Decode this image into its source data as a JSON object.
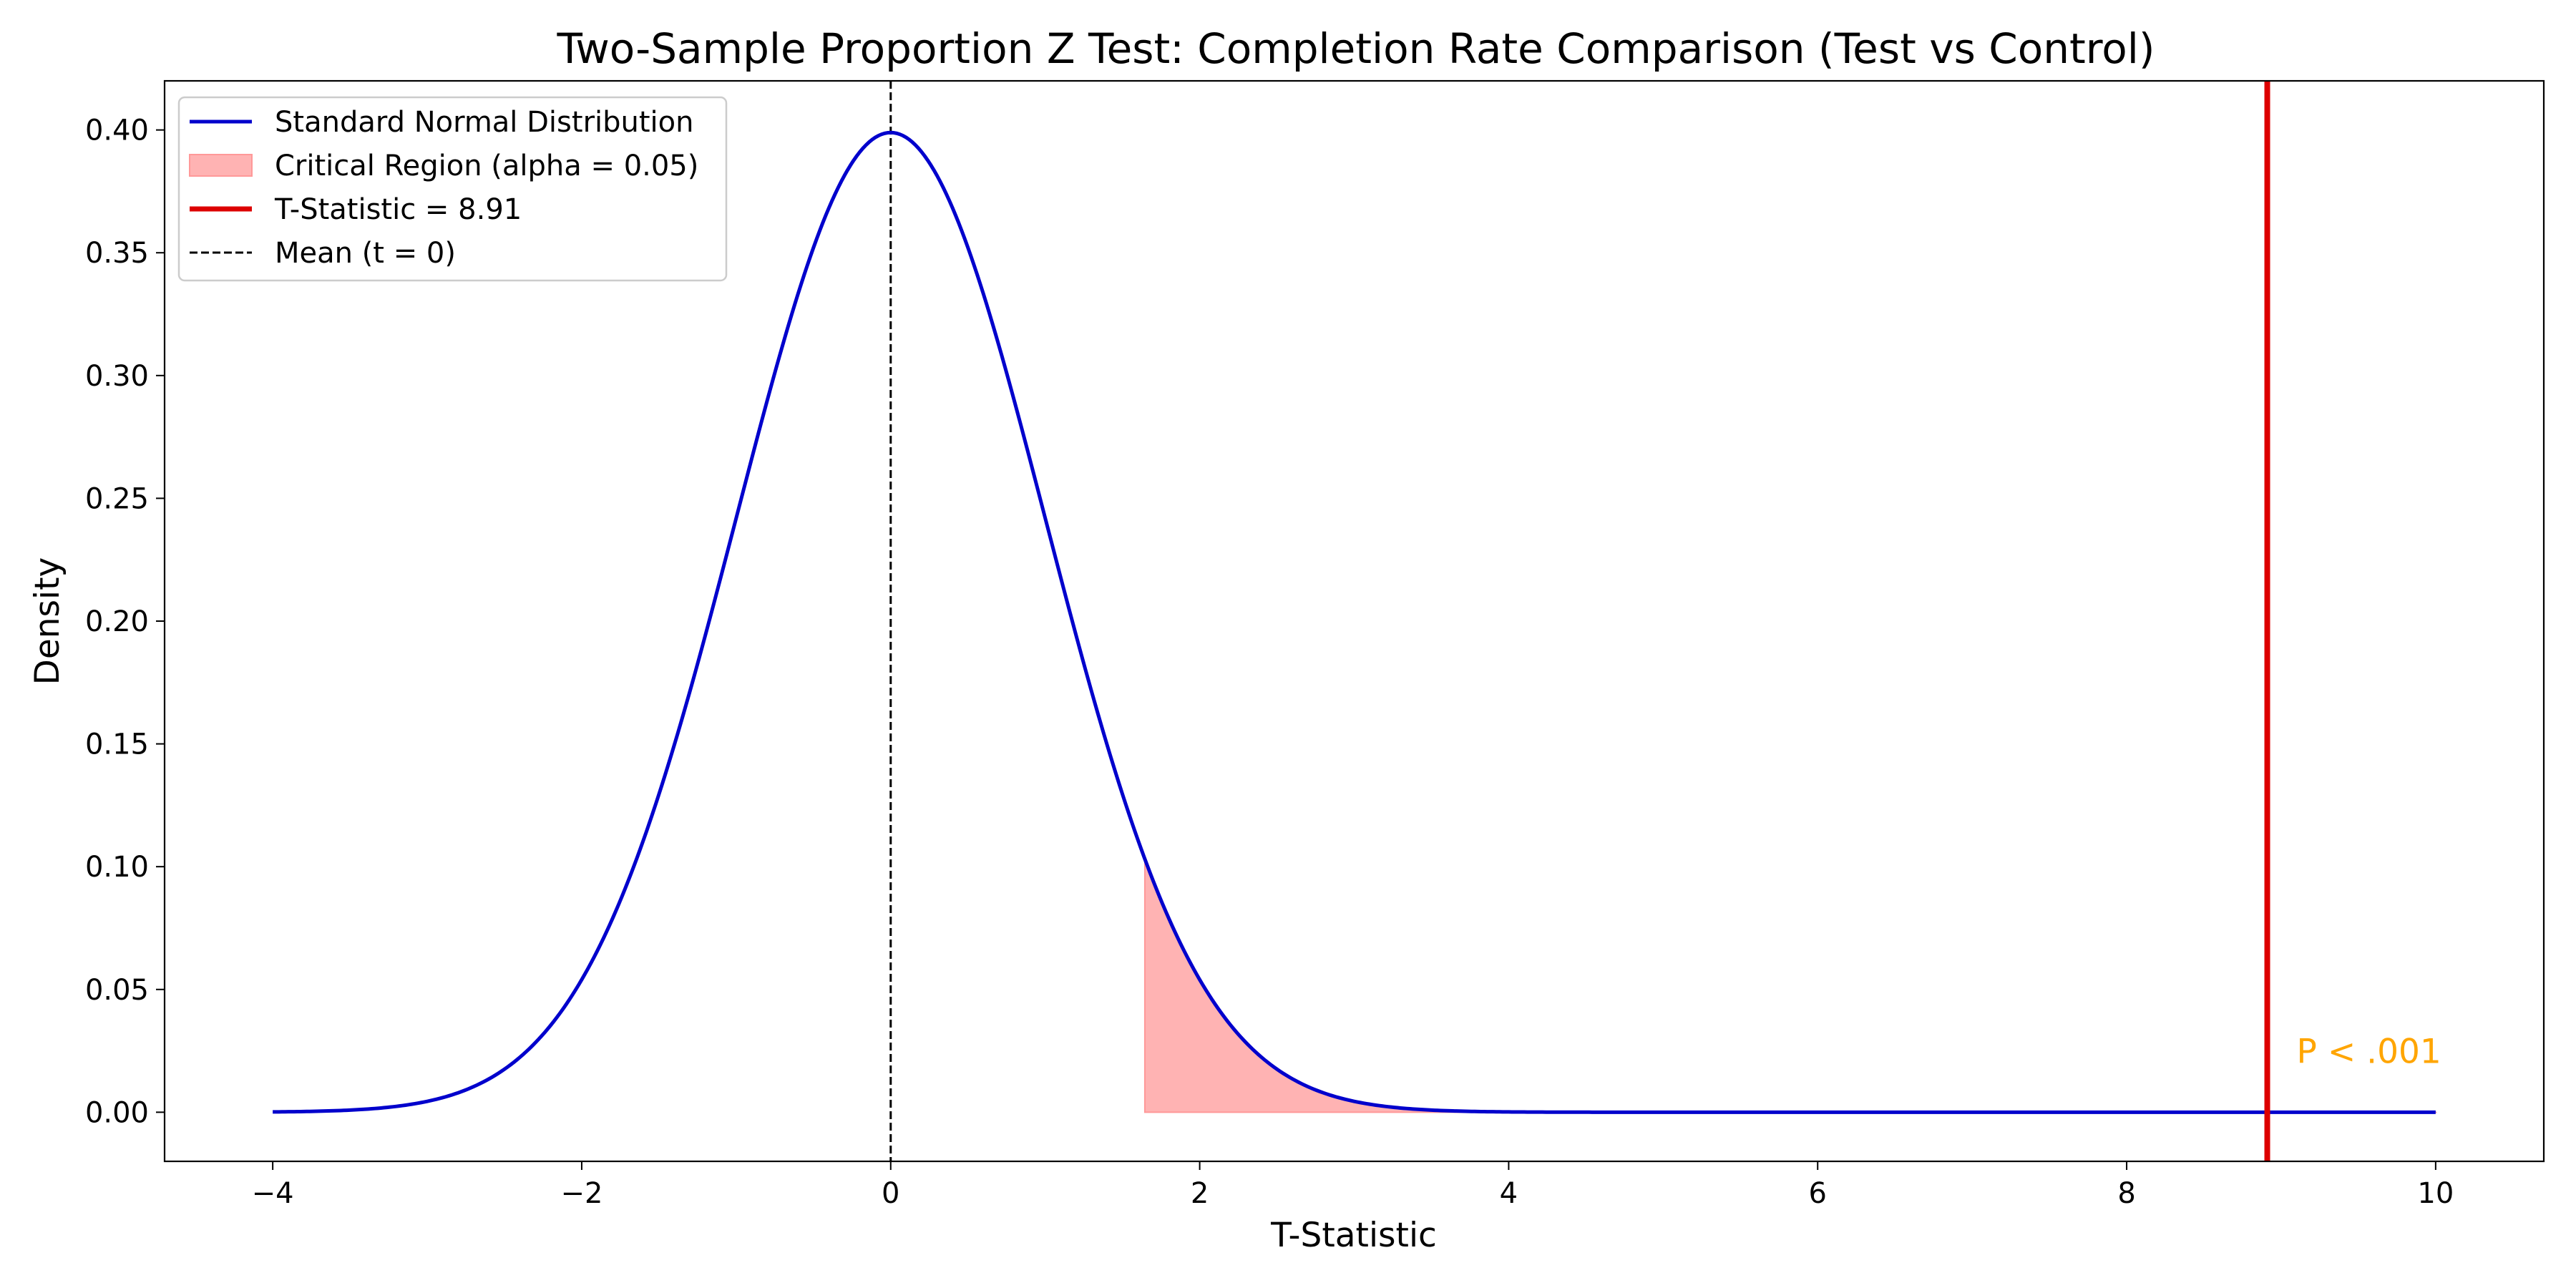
{
  "chart_data": {
    "type": "line",
    "title": "Two-Sample Proportion Z Test: Completion Rate Comparison (Test vs Control)",
    "xlabel": "T-Statistic",
    "ylabel": "Density",
    "xlim": [
      -4.7,
      10.7
    ],
    "ylim": [
      -0.02,
      0.42
    ],
    "x_ticks": [
      -4,
      -2,
      0,
      2,
      4,
      6,
      8,
      10
    ],
    "x_tick_labels": [
      "−4",
      "−2",
      "0",
      "2",
      "4",
      "6",
      "8",
      "10"
    ],
    "y_ticks": [
      0.0,
      0.05,
      0.1,
      0.15,
      0.2,
      0.25,
      0.3,
      0.35,
      0.4
    ],
    "y_tick_labels": [
      "0.00",
      "0.05",
      "0.10",
      "0.15",
      "0.20",
      "0.25",
      "0.30",
      "0.35",
      "0.40"
    ],
    "grid": false,
    "legend_position": "top-left",
    "series": [
      {
        "name": "Standard Normal Distribution",
        "kind": "line",
        "function": "standard_normal_pdf",
        "x_range": [
          -4,
          10
        ],
        "color": "#0000cc"
      },
      {
        "name": "Critical Region (alpha = 0.05)",
        "kind": "area",
        "function": "standard_normal_pdf",
        "x_range": [
          1.645,
          10
        ],
        "color": "#ff9999"
      },
      {
        "name": "T-Statistic = 8.91",
        "kind": "vline",
        "x": 8.91,
        "color": "#dd0000"
      },
      {
        "name": "Mean (t = 0)",
        "kind": "vline",
        "x": 0,
        "color": "#000000",
        "style": "dashed"
      }
    ],
    "annotations": [
      {
        "text": "P < .001",
        "x": 9.1,
        "y": 0.02,
        "color": "#ffa500"
      }
    ]
  }
}
